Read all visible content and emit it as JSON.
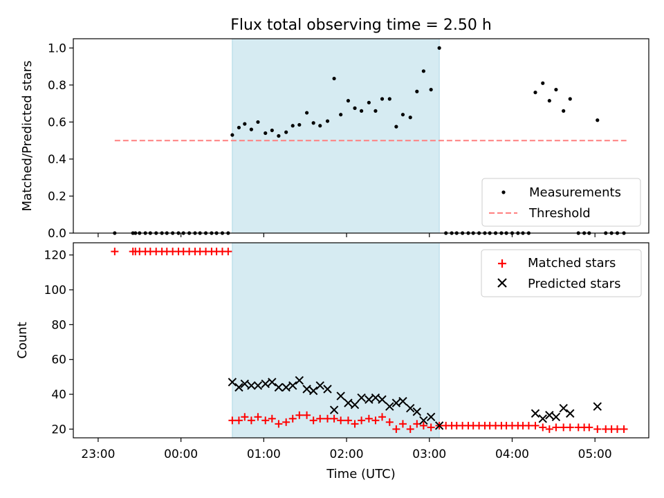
{
  "title": "Flux total observing time = 2.50 h",
  "chart_data": [
    {
      "type": "scatter",
      "ylabel": "Matched/Predicted stars",
      "xlabel": "",
      "ylim": [
        0,
        1.05
      ],
      "yticks": [
        "0.0",
        "0.2",
        "0.4",
        "0.6",
        "0.8",
        "1.0"
      ],
      "legend_position": "lower-right",
      "legend": [
        {
          "label": "Measurements",
          "marker": "dot",
          "color": "#000000"
        },
        {
          "label": "Threshold",
          "marker": "dashed-line",
          "color": "#ff7f7f"
        }
      ],
      "threshold": {
        "y": 0.5,
        "x_start": 23.2,
        "x_end": 29.38,
        "color": "#ff7f7f"
      },
      "shaded_region": {
        "x_start": 24.62,
        "x_end": 27.12,
        "color": "#add8e6"
      },
      "series": [
        {
          "name": "Measurements",
          "points": [
            [
              23.2,
              0
            ],
            [
              23.42,
              0
            ],
            [
              23.45,
              0
            ],
            [
              23.5,
              0
            ],
            [
              23.57,
              0
            ],
            [
              23.63,
              0
            ],
            [
              23.7,
              0
            ],
            [
              23.77,
              0
            ],
            [
              23.83,
              0
            ],
            [
              23.9,
              0
            ],
            [
              23.97,
              0
            ],
            [
              24.03,
              0
            ],
            [
              24.1,
              0
            ],
            [
              24.17,
              0
            ],
            [
              24.23,
              0
            ],
            [
              24.3,
              0
            ],
            [
              24.37,
              0
            ],
            [
              24.43,
              0
            ],
            [
              24.5,
              0
            ],
            [
              24.57,
              0
            ],
            [
              24.62,
              0.53
            ],
            [
              24.7,
              0.57
            ],
            [
              24.77,
              0.59
            ],
            [
              24.85,
              0.56
            ],
            [
              24.93,
              0.6
            ],
            [
              25.02,
              0.54
            ],
            [
              25.1,
              0.555
            ],
            [
              25.18,
              0.525
            ],
            [
              25.27,
              0.545
            ],
            [
              25.35,
              0.58
            ],
            [
              25.43,
              0.585
            ],
            [
              25.52,
              0.65
            ],
            [
              25.6,
              0.595
            ],
            [
              25.68,
              0.58
            ],
            [
              25.77,
              0.605
            ],
            [
              25.85,
              0.835
            ],
            [
              25.93,
              0.64
            ],
            [
              26.02,
              0.715
            ],
            [
              26.1,
              0.675
            ],
            [
              26.18,
              0.66
            ],
            [
              26.27,
              0.705
            ],
            [
              26.35,
              0.66
            ],
            [
              26.43,
              0.725
            ],
            [
              26.52,
              0.725
            ],
            [
              26.6,
              0.575
            ],
            [
              26.68,
              0.64
            ],
            [
              26.77,
              0.625
            ],
            [
              26.85,
              0.765
            ],
            [
              26.93,
              0.875
            ],
            [
              27.02,
              0.775
            ],
            [
              27.12,
              1.0
            ],
            [
              27.2,
              0
            ],
            [
              27.27,
              0
            ],
            [
              27.33,
              0
            ],
            [
              27.4,
              0
            ],
            [
              27.47,
              0
            ],
            [
              27.53,
              0
            ],
            [
              27.6,
              0
            ],
            [
              27.67,
              0
            ],
            [
              27.73,
              0
            ],
            [
              27.8,
              0
            ],
            [
              27.87,
              0
            ],
            [
              27.93,
              0
            ],
            [
              28.0,
              0
            ],
            [
              28.07,
              0
            ],
            [
              28.13,
              0
            ],
            [
              28.2,
              0
            ],
            [
              28.28,
              0.76
            ],
            [
              28.37,
              0.81
            ],
            [
              28.45,
              0.715
            ],
            [
              28.53,
              0.775
            ],
            [
              28.62,
              0.66
            ],
            [
              28.7,
              0.725
            ],
            [
              28.8,
              0
            ],
            [
              28.87,
              0
            ],
            [
              28.93,
              0
            ],
            [
              29.03,
              0.61
            ],
            [
              29.13,
              0
            ],
            [
              29.2,
              0
            ],
            [
              29.27,
              0
            ],
            [
              29.35,
              0
            ]
          ]
        }
      ]
    },
    {
      "type": "scatter",
      "ylabel": "Count",
      "xlabel": "Time (UTC)",
      "ylim": [
        15,
        127
      ],
      "yticks": [
        "20",
        "40",
        "60",
        "80",
        "100",
        "120"
      ],
      "x_tick_values": [
        23,
        24,
        25,
        26,
        27,
        28,
        29
      ],
      "x_tick_labels": [
        "23:00",
        "00:00",
        "01:00",
        "02:00",
        "03:00",
        "04:00",
        "05:00"
      ],
      "xlim": [
        22.7,
        29.65
      ],
      "legend_position": "upper-right",
      "legend": [
        {
          "label": "Matched stars",
          "marker": "plus",
          "color": "#ff0000"
        },
        {
          "label": "Predicted stars",
          "marker": "x",
          "color": "#000000"
        }
      ],
      "shaded_region": {
        "x_start": 24.62,
        "x_end": 27.12,
        "color": "#add8e6"
      },
      "series": [
        {
          "name": "Matched stars",
          "points": [
            [
              23.2,
              122
            ],
            [
              23.42,
              122
            ],
            [
              23.45,
              122
            ],
            [
              23.5,
              122
            ],
            [
              23.57,
              122
            ],
            [
              23.63,
              122
            ],
            [
              23.7,
              122
            ],
            [
              23.77,
              122
            ],
            [
              23.83,
              122
            ],
            [
              23.9,
              122
            ],
            [
              23.97,
              122
            ],
            [
              24.03,
              122
            ],
            [
              24.1,
              122
            ],
            [
              24.17,
              122
            ],
            [
              24.23,
              122
            ],
            [
              24.3,
              122
            ],
            [
              24.37,
              122
            ],
            [
              24.43,
              122
            ],
            [
              24.5,
              122
            ],
            [
              24.57,
              122
            ],
            [
              24.62,
              25
            ],
            [
              24.7,
              25
            ],
            [
              24.77,
              27
            ],
            [
              24.85,
              25
            ],
            [
              24.93,
              27
            ],
            [
              25.02,
              25
            ],
            [
              25.1,
              26
            ],
            [
              25.18,
              23
            ],
            [
              25.27,
              24
            ],
            [
              25.35,
              26
            ],
            [
              25.43,
              28
            ],
            [
              25.52,
              28
            ],
            [
              25.6,
              25
            ],
            [
              25.68,
              26
            ],
            [
              25.77,
              26
            ],
            [
              25.85,
              26
            ],
            [
              25.93,
              25
            ],
            [
              26.02,
              25
            ],
            [
              26.1,
              23
            ],
            [
              26.18,
              25
            ],
            [
              26.27,
              26
            ],
            [
              26.35,
              25
            ],
            [
              26.43,
              27
            ],
            [
              26.52,
              24
            ],
            [
              26.6,
              20
            ],
            [
              26.68,
              23
            ],
            [
              26.77,
              20
            ],
            [
              26.85,
              23
            ],
            [
              26.93,
              22
            ],
            [
              27.02,
              21
            ],
            [
              27.12,
              22
            ],
            [
              27.2,
              22
            ],
            [
              27.27,
              22
            ],
            [
              27.33,
              22
            ],
            [
              27.4,
              22
            ],
            [
              27.47,
              22
            ],
            [
              27.53,
              22
            ],
            [
              27.6,
              22
            ],
            [
              27.67,
              22
            ],
            [
              27.73,
              22
            ],
            [
              27.8,
              22
            ],
            [
              27.87,
              22
            ],
            [
              27.93,
              22
            ],
            [
              28.0,
              22
            ],
            [
              28.07,
              22
            ],
            [
              28.13,
              22
            ],
            [
              28.2,
              22
            ],
            [
              28.28,
              22
            ],
            [
              28.37,
              21
            ],
            [
              28.45,
              20
            ],
            [
              28.53,
              21
            ],
            [
              28.62,
              21
            ],
            [
              28.7,
              21
            ],
            [
              28.8,
              21
            ],
            [
              28.87,
              21
            ],
            [
              28.93,
              21
            ],
            [
              29.03,
              20
            ],
            [
              29.13,
              20
            ],
            [
              29.2,
              20
            ],
            [
              29.27,
              20
            ],
            [
              29.35,
              20
            ]
          ]
        },
        {
          "name": "Predicted stars",
          "points": [
            [
              24.62,
              47
            ],
            [
              24.7,
              44
            ],
            [
              24.77,
              46
            ],
            [
              24.85,
              45
            ],
            [
              24.93,
              45
            ],
            [
              25.02,
              46
            ],
            [
              25.1,
              47
            ],
            [
              25.18,
              44
            ],
            [
              25.27,
              44
            ],
            [
              25.35,
              45
            ],
            [
              25.43,
              48
            ],
            [
              25.52,
              43
            ],
            [
              25.6,
              42
            ],
            [
              25.68,
              45
            ],
            [
              25.77,
              43
            ],
            [
              25.85,
              31
            ],
            [
              25.93,
              39
            ],
            [
              26.02,
              35
            ],
            [
              26.1,
              34
            ],
            [
              26.18,
              38
            ],
            [
              26.27,
              37
            ],
            [
              26.35,
              38
            ],
            [
              26.43,
              37
            ],
            [
              26.52,
              33
            ],
            [
              26.6,
              35
            ],
            [
              26.68,
              36
            ],
            [
              26.77,
              32
            ],
            [
              26.85,
              30
            ],
            [
              26.93,
              25
            ],
            [
              27.02,
              27
            ],
            [
              27.12,
              22
            ],
            [
              28.28,
              29
            ],
            [
              28.37,
              26
            ],
            [
              28.45,
              28
            ],
            [
              28.53,
              27
            ],
            [
              28.62,
              32
            ],
            [
              28.7,
              29
            ],
            [
              29.03,
              33
            ]
          ]
        }
      ]
    }
  ]
}
